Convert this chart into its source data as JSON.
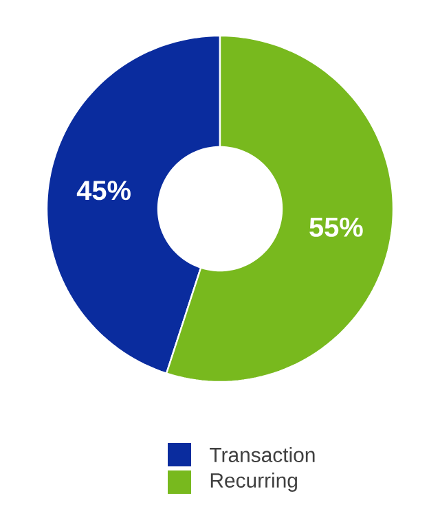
{
  "chart_data": {
    "type": "donut",
    "categories": [
      "Transaction",
      "Recurring"
    ],
    "values": [
      45,
      55
    ],
    "colors": [
      "#0a2c9e",
      "#78b91e"
    ],
    "value_labels": [
      "45%",
      "55%"
    ],
    "legend": "bottom"
  }
}
